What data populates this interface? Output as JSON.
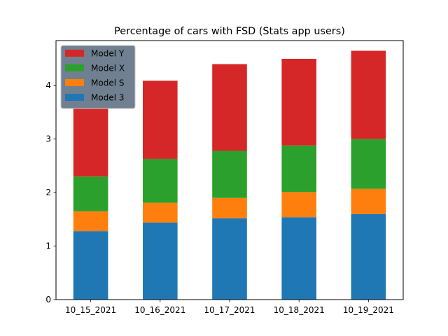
{
  "chart_data": {
    "type": "bar",
    "stacked": true,
    "title": "Percentage of cars with FSD (Stats app users)",
    "xlabel": "",
    "ylabel": "",
    "categories": [
      "10_15_2021",
      "10_16_2021",
      "10_17_2021",
      "10_18_2021",
      "10_19_2021"
    ],
    "ylim": [
      0,
      4.84
    ],
    "yticks": [
      0,
      1,
      2,
      3,
      4
    ],
    "grid": false,
    "legend_placement": "top-left",
    "series": [
      {
        "name": "Model 3",
        "color": "#1f77b4",
        "values": [
          1.28,
          1.44,
          1.52,
          1.54,
          1.6
        ]
      },
      {
        "name": "Model S",
        "color": "#ff7f0e",
        "values": [
          0.37,
          0.37,
          0.38,
          0.47,
          0.47
        ]
      },
      {
        "name": "Model X",
        "color": "#2ca02c",
        "values": [
          0.65,
          0.82,
          0.88,
          0.87,
          0.93
        ]
      },
      {
        "name": "Model Y",
        "color": "#d62728",
        "values": [
          1.4,
          1.46,
          1.62,
          1.62,
          1.65
        ]
      }
    ]
  }
}
